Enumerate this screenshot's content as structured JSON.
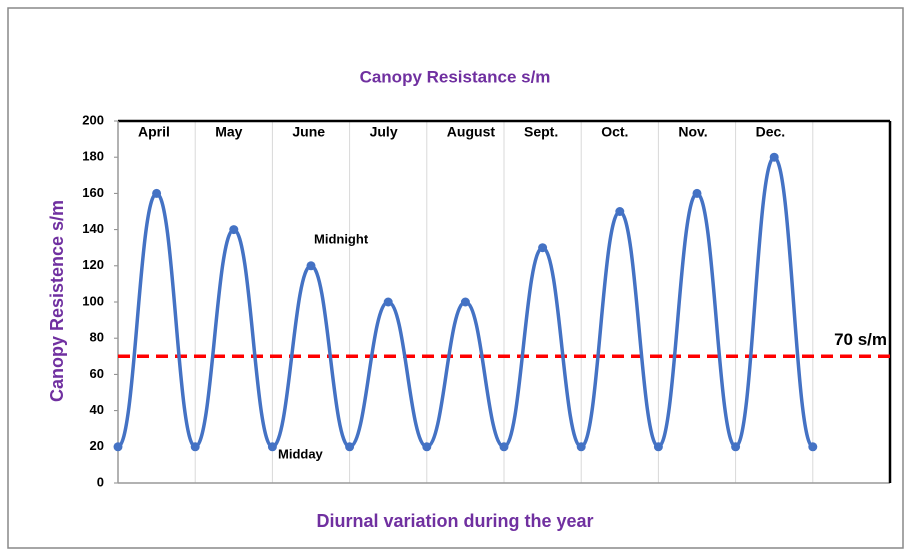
{
  "chart_data": {
    "type": "line",
    "title": "Canopy Resistance s/m",
    "x_label": "Diurnal variation during the year",
    "y_label": "Canopy Resistence s/m",
    "x": [
      0,
      1,
      2,
      3,
      4,
      5,
      6,
      7,
      8,
      9,
      10,
      11,
      12,
      13,
      14,
      15,
      16,
      17,
      18
    ],
    "xlim": [
      0,
      20
    ],
    "series": [
      {
        "name": "Canopy Resistance",
        "color": "#4472c4",
        "values": [
          20,
          160,
          20,
          140,
          20,
          120,
          20,
          100,
          20,
          100,
          20,
          130,
          20,
          150,
          20,
          160,
          20,
          180,
          20
        ]
      }
    ],
    "ylim": [
      0,
      200
    ],
    "yticks": [
      0,
      20,
      40,
      60,
      80,
      100,
      120,
      140,
      160,
      180,
      200
    ],
    "vertical_grid": true,
    "months": [
      "April",
      "May",
      "June",
      "July",
      "August",
      "Sept.",
      "Oct.",
      "Nov.",
      "Dec."
    ],
    "annotations": [
      "Midnight",
      "Midday"
    ],
    "reference_line": {
      "value": 70,
      "label": "70 s/m",
      "color": "#ff0000"
    }
  }
}
